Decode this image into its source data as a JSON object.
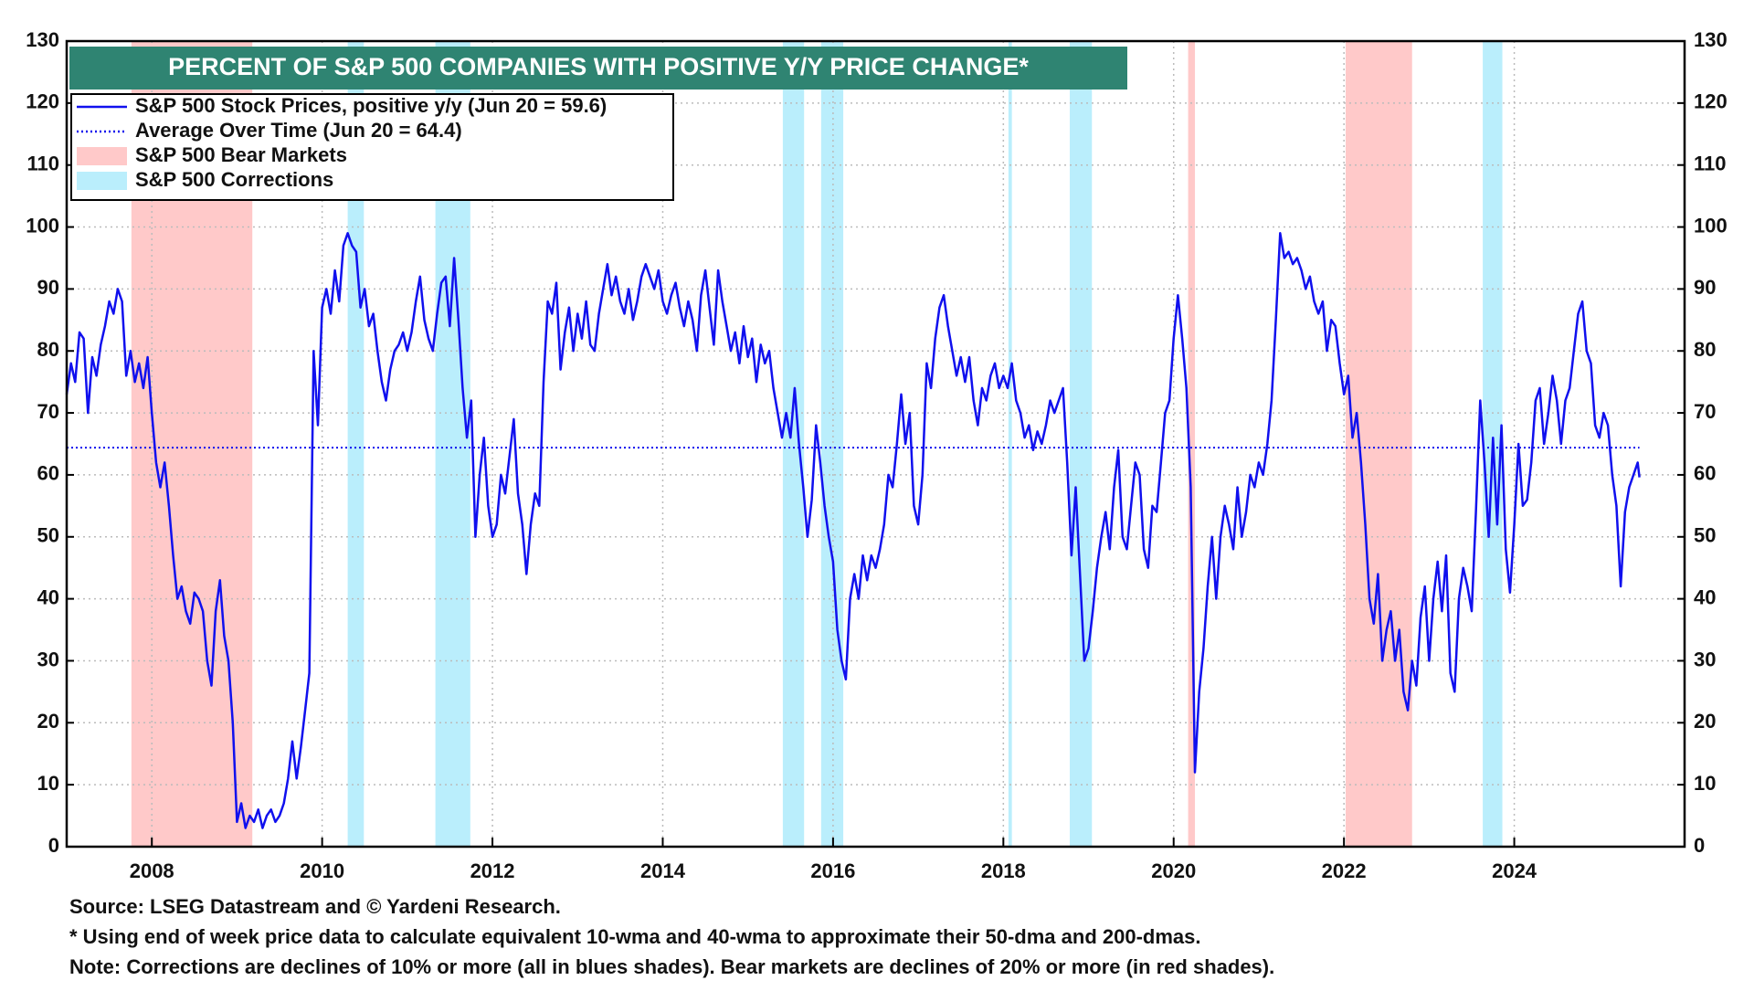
{
  "chart_data": {
    "type": "line",
    "title": "PERCENT OF S&P 500 COMPANIES WITH POSITIVE Y/Y PRICE CHANGE*",
    "xlim": [
      2007,
      2026
    ],
    "xticks": [
      2008,
      2010,
      2012,
      2014,
      2016,
      2018,
      2020,
      2022,
      2024
    ],
    "ylim": [
      0,
      130
    ],
    "yticks": [
      0,
      10,
      20,
      30,
      40,
      50,
      60,
      70,
      80,
      90,
      100,
      110,
      120,
      130
    ],
    "grid": true,
    "legend": "upper left",
    "series": [
      {
        "name": "S&P 500 Stock Prices, positive y/y (Jun 20 = 59.6)",
        "color": "#1010ee",
        "x": [
          2007,
          2007.05,
          2007.1,
          2007.15,
          2007.2,
          2007.25,
          2007.3,
          2007.35,
          2007.4,
          2007.45,
          2007.5,
          2007.55,
          2007.6,
          2007.65,
          2007.7,
          2007.75,
          2007.8,
          2007.85,
          2007.9,
          2007.95,
          2008,
          2008.05,
          2008.1,
          2008.15,
          2008.2,
          2008.25,
          2008.3,
          2008.35,
          2008.4,
          2008.45,
          2008.5,
          2008.55,
          2008.6,
          2008.65,
          2008.7,
          2008.75,
          2008.8,
          2008.85,
          2008.9,
          2008.95,
          2009,
          2009.05,
          2009.1,
          2009.15,
          2009.2,
          2009.25,
          2009.3,
          2009.35,
          2009.4,
          2009.45,
          2009.5,
          2009.55,
          2009.6,
          2009.65,
          2009.7,
          2009.75,
          2009.8,
          2009.85,
          2009.9,
          2009.95,
          2010,
          2010.05,
          2010.1,
          2010.15,
          2010.2,
          2010.25,
          2010.3,
          2010.35,
          2010.4,
          2010.45,
          2010.5,
          2010.55,
          2010.6,
          2010.65,
          2010.7,
          2010.75,
          2010.8,
          2010.85,
          2010.9,
          2010.95,
          2011,
          2011.05,
          2011.1,
          2011.15,
          2011.2,
          2011.25,
          2011.3,
          2011.35,
          2011.4,
          2011.45,
          2011.5,
          2011.55,
          2011.6,
          2011.65,
          2011.7,
          2011.75,
          2011.8,
          2011.85,
          2011.9,
          2011.95,
          2012,
          2012.05,
          2012.1,
          2012.15,
          2012.2,
          2012.25,
          2012.3,
          2012.35,
          2012.4,
          2012.45,
          2012.5,
          2012.55,
          2012.6,
          2012.65,
          2012.7,
          2012.75,
          2012.8,
          2012.85,
          2012.9,
          2012.95,
          2013,
          2013.05,
          2013.1,
          2013.15,
          2013.2,
          2013.25,
          2013.3,
          2013.35,
          2013.4,
          2013.45,
          2013.5,
          2013.55,
          2013.6,
          2013.65,
          2013.7,
          2013.75,
          2013.8,
          2013.85,
          2013.9,
          2013.95,
          2014,
          2014.05,
          2014.1,
          2014.15,
          2014.2,
          2014.25,
          2014.3,
          2014.35,
          2014.4,
          2014.45,
          2014.5,
          2014.55,
          2014.6,
          2014.65,
          2014.7,
          2014.75,
          2014.8,
          2014.85,
          2014.9,
          2014.95,
          2015,
          2015.05,
          2015.1,
          2015.15,
          2015.2,
          2015.25,
          2015.3,
          2015.35,
          2015.4,
          2015.45,
          2015.5,
          2015.55,
          2015.6,
          2015.65,
          2015.7,
          2015.75,
          2015.8,
          2015.85,
          2015.9,
          2015.95,
          2016,
          2016.05,
          2016.1,
          2016.15,
          2016.2,
          2016.25,
          2016.3,
          2016.35,
          2016.4,
          2016.45,
          2016.5,
          2016.55,
          2016.6,
          2016.65,
          2016.7,
          2016.75,
          2016.8,
          2016.85,
          2016.9,
          2016.95,
          2017,
          2017.05,
          2017.1,
          2017.15,
          2017.2,
          2017.25,
          2017.3,
          2017.35,
          2017.4,
          2017.45,
          2017.5,
          2017.55,
          2017.6,
          2017.65,
          2017.7,
          2017.75,
          2017.8,
          2017.85,
          2017.9,
          2017.95,
          2018,
          2018.05,
          2018.1,
          2018.15,
          2018.2,
          2018.25,
          2018.3,
          2018.35,
          2018.4,
          2018.45,
          2018.5,
          2018.55,
          2018.6,
          2018.65,
          2018.7,
          2018.75,
          2018.8,
          2018.85,
          2018.9,
          2018.95,
          2019,
          2019.05,
          2019.1,
          2019.15,
          2019.2,
          2019.25,
          2019.3,
          2019.35,
          2019.4,
          2019.45,
          2019.5,
          2019.55,
          2019.6,
          2019.65,
          2019.7,
          2019.75,
          2019.8,
          2019.85,
          2019.9,
          2019.95,
          2020,
          2020.05,
          2020.1,
          2020.15,
          2020.2,
          2020.25,
          2020.3,
          2020.35,
          2020.4,
          2020.45,
          2020.5,
          2020.55,
          2020.6,
          2020.65,
          2020.7,
          2020.75,
          2020.8,
          2020.85,
          2020.9,
          2020.95,
          2021,
          2021.05,
          2021.1,
          2021.15,
          2021.2,
          2021.25,
          2021.3,
          2021.35,
          2021.4,
          2021.45,
          2021.5,
          2021.55,
          2021.6,
          2021.65,
          2021.7,
          2021.75,
          2021.8,
          2021.85,
          2021.9,
          2021.95,
          2022,
          2022.05,
          2022.1,
          2022.15,
          2022.2,
          2022.25,
          2022.3,
          2022.35,
          2022.4,
          2022.45,
          2022.5,
          2022.55,
          2022.6,
          2022.65,
          2022.7,
          2022.75,
          2022.8,
          2022.85,
          2022.9,
          2022.95,
          2023,
          2023.05,
          2023.1,
          2023.15,
          2023.2,
          2023.25,
          2023.3,
          2023.35,
          2023.4,
          2023.45,
          2023.5,
          2023.55,
          2023.6,
          2023.65,
          2023.7,
          2023.75,
          2023.8,
          2023.85,
          2023.9,
          2023.95,
          2024,
          2024.05,
          2024.1,
          2024.15,
          2024.2,
          2024.25,
          2024.3,
          2024.35,
          2024.4,
          2024.45,
          2024.5,
          2024.55,
          2024.6,
          2024.65,
          2024.7,
          2024.75,
          2024.8,
          2024.85,
          2024.9,
          2024.95,
          2025,
          2025.05,
          2025.1,
          2025.15,
          2025.2,
          2025.25,
          2025.3,
          2025.35,
          2025.4,
          2025.45,
          2025.47
        ],
        "values": [
          73,
          78,
          75,
          83,
          82,
          70,
          79,
          76,
          81,
          84,
          88,
          86,
          90,
          88,
          76,
          80,
          75,
          78,
          74,
          79,
          70,
          62,
          58,
          62,
          55,
          47,
          40,
          42,
          38,
          36,
          41,
          40,
          38,
          30,
          26,
          38,
          43,
          34,
          30,
          20,
          4,
          7,
          3,
          5,
          4,
          6,
          3,
          5,
          6,
          4,
          5,
          7,
          11,
          17,
          11,
          16,
          22,
          28,
          80,
          68,
          87,
          90,
          86,
          93,
          88,
          97,
          99,
          97,
          96,
          87,
          90,
          84,
          86,
          80,
          75,
          72,
          77,
          80,
          81,
          83,
          80,
          83,
          88,
          92,
          85,
          82,
          80,
          86,
          91,
          92,
          84,
          95,
          85,
          74,
          66,
          72,
          50,
          60,
          66,
          55,
          50,
          52,
          60,
          57,
          63,
          69,
          57,
          52,
          44,
          52,
          57,
          55,
          75,
          88,
          86,
          91,
          77,
          83,
          87,
          80,
          86,
          82,
          88,
          81,
          80,
          86,
          90,
          94,
          89,
          92,
          88,
          86,
          90,
          85,
          88,
          92,
          94,
          92,
          90,
          93,
          88,
          86,
          89,
          91,
          87,
          84,
          88,
          85,
          80,
          89,
          93,
          87,
          81,
          93,
          88,
          84,
          80,
          83,
          78,
          84,
          79,
          82,
          75,
          81,
          78,
          80,
          74,
          70,
          66,
          70,
          66,
          74,
          65,
          58,
          50,
          56,
          68,
          62,
          55,
          50,
          46,
          35,
          30,
          27,
          40,
          44,
          40,
          47,
          43,
          47,
          45,
          48,
          52,
          60,
          58,
          65,
          73,
          65,
          70,
          55,
          52,
          60,
          78,
          74,
          82,
          87,
          89,
          84,
          80,
          76,
          79,
          75,
          79,
          72,
          68,
          74,
          72,
          76,
          78,
          74,
          76,
          74,
          78,
          72,
          70,
          66,
          68,
          64,
          67,
          65,
          68,
          72,
          70,
          72,
          74,
          62,
          47,
          58,
          44,
          30,
          32,
          38,
          45,
          50,
          54,
          48,
          58,
          64,
          50,
          48,
          55,
          62,
          60,
          48,
          45,
          55,
          54,
          62,
          70,
          72,
          82,
          89,
          82,
          74,
          58,
          12,
          25,
          32,
          42,
          50,
          40,
          50,
          55,
          52,
          48,
          58,
          50,
          54,
          60,
          58,
          62,
          60,
          65,
          72,
          85,
          99,
          95,
          96,
          94,
          95,
          93,
          90,
          92,
          88,
          86,
          88,
          80,
          85,
          84,
          78,
          73,
          76,
          66,
          70,
          62,
          52,
          40,
          36,
          44,
          30,
          35,
          38,
          30,
          35,
          25,
          22,
          30,
          26,
          37,
          42,
          30,
          40,
          46,
          38,
          47,
          28,
          25,
          40,
          45,
          42,
          38,
          54,
          72,
          62,
          50,
          66,
          52,
          68,
          48,
          41,
          52,
          65,
          55,
          56,
          62,
          72,
          74,
          65,
          70,
          76,
          72,
          65,
          72,
          74,
          80,
          86,
          88,
          80,
          78,
          68,
          66,
          70,
          68,
          60,
          55,
          42,
          54,
          58,
          60,
          62,
          59.6
        ]
      }
    ],
    "average": {
      "name": "Average Over Time (Jun 20 = 64.4)",
      "value": 64.4,
      "color": "#1010ee"
    },
    "bear_markets": {
      "name": "S&P 500 Bear Markets",
      "color": "#ffc9c9",
      "periods": [
        [
          2007.76,
          2009.18
        ],
        [
          2020.17,
          2020.25
        ],
        [
          2022.02,
          2022.8
        ]
      ]
    },
    "corrections": {
      "name": "S&P 500 Corrections",
      "color": "#baeefc",
      "periods": [
        [
          2010.3,
          2010.49
        ],
        [
          2011.33,
          2011.74
        ],
        [
          2015.41,
          2015.66
        ],
        [
          2015.86,
          2016.12
        ],
        [
          2018.06,
          2018.1
        ],
        [
          2018.78,
          2019.04
        ],
        [
          2023.63,
          2023.86
        ]
      ]
    },
    "source": "Source: LSEG Datastream and © Yardeni Research.",
    "notes": [
      "* Using end of week price data to calculate equivalent 10-wma and 40-wma to approximate their 50-dma and 200-dmas.",
      "Note: Corrections are declines of 10% or more (all in blues shades). Bear markets are declines of 20% or more (in red shades)."
    ]
  }
}
